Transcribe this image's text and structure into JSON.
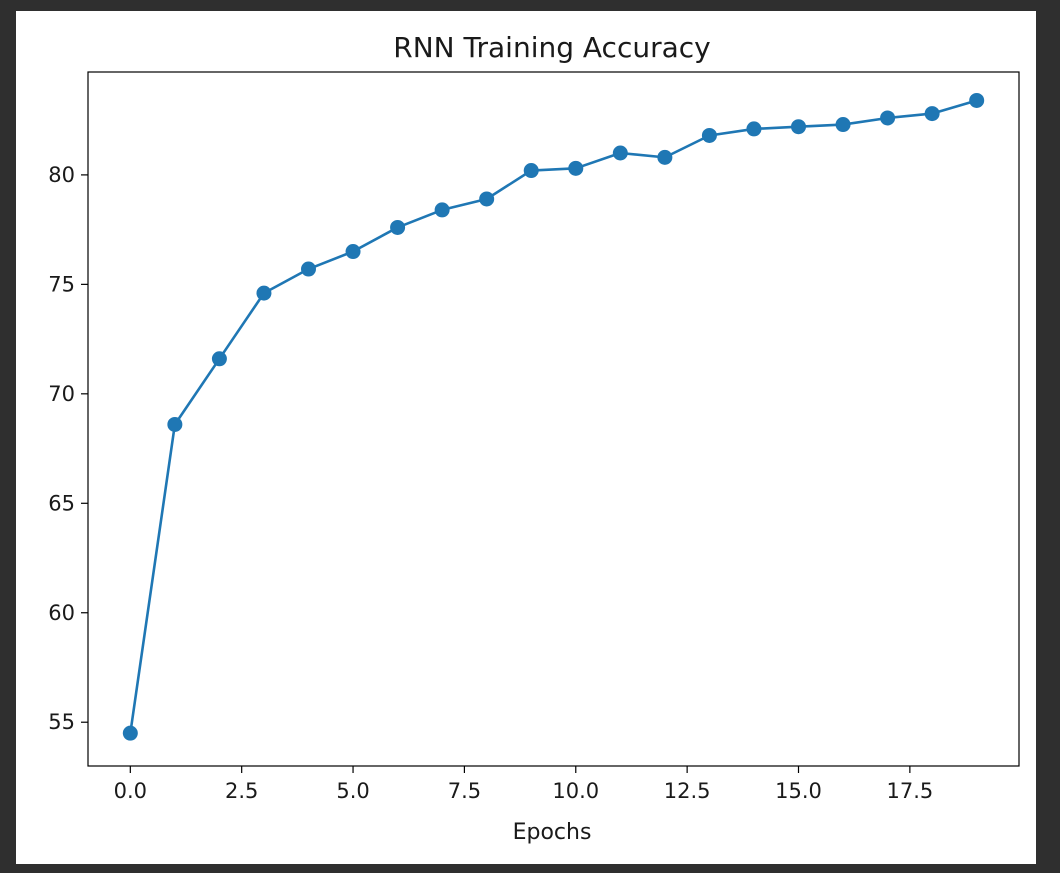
{
  "chart_data": {
    "type": "line",
    "title": "RNN Training Accuracy",
    "xlabel": "Epochs",
    "ylabel": "",
    "xlim": [
      -0.95,
      19.95
    ],
    "ylim": [
      53.0,
      84.7
    ],
    "xticks": [
      0.0,
      2.5,
      5.0,
      7.5,
      10.0,
      12.5,
      15.0,
      17.5
    ],
    "xtick_labels": [
      "0.0",
      "2.5",
      "5.0",
      "7.5",
      "10.0",
      "12.5",
      "15.0",
      "17.5"
    ],
    "yticks": [
      55,
      60,
      65,
      70,
      75,
      80
    ],
    "ytick_labels": [
      "55",
      "60",
      "65",
      "70",
      "75",
      "80"
    ],
    "grid": false,
    "series": [
      {
        "x": [
          0,
          1,
          2,
          3,
          4,
          5,
          6,
          7,
          8,
          9,
          10,
          11,
          12,
          13,
          14,
          15,
          16,
          17,
          18,
          19
        ],
        "values": [
          54.5,
          68.6,
          71.6,
          74.6,
          75.7,
          76.5,
          77.6,
          78.4,
          78.9,
          80.2,
          80.3,
          81.0,
          80.8,
          81.8,
          82.1,
          82.2,
          82.3,
          82.6,
          82.8,
          83.4
        ],
        "color": "#1f77b4",
        "marker": "circle"
      }
    ]
  }
}
